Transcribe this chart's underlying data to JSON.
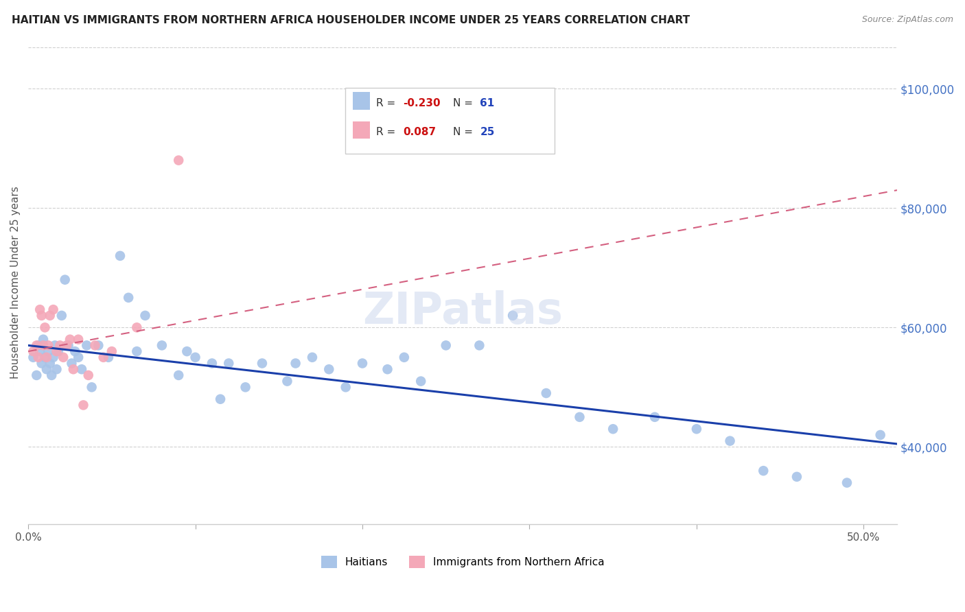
{
  "title": "HAITIAN VS IMMIGRANTS FROM NORTHERN AFRICA HOUSEHOLDER INCOME UNDER 25 YEARS CORRELATION CHART",
  "source": "Source: ZipAtlas.com",
  "ylabel": "Householder Income Under 25 years",
  "xlim": [
    0.0,
    0.52
  ],
  "ylim": [
    27000,
    108000
  ],
  "ytick_positions": [
    40000,
    60000,
    80000,
    100000
  ],
  "ytick_labels": [
    "$40,000",
    "$60,000",
    "$80,000",
    "$100,000"
  ],
  "blue_R": -0.23,
  "blue_N": 61,
  "pink_R": 0.087,
  "pink_N": 25,
  "blue_label": "Haitians",
  "pink_label": "Immigrants from Northern Africa",
  "blue_color": "#a8c4e8",
  "pink_color": "#f4a8b8",
  "blue_line_color": "#1a3faa",
  "pink_line_color": "#d46080",
  "watermark": "ZIPatlas",
  "blue_line_x0": 0.0,
  "blue_line_x1": 0.52,
  "blue_line_y0": 57000,
  "blue_line_y1": 40500,
  "pink_line_x0": 0.0,
  "pink_line_x1": 0.52,
  "pink_line_y0": 56000,
  "pink_line_y1": 83000,
  "blue_x": [
    0.003,
    0.005,
    0.006,
    0.007,
    0.008,
    0.009,
    0.01,
    0.011,
    0.012,
    0.013,
    0.014,
    0.015,
    0.016,
    0.017,
    0.018,
    0.02,
    0.022,
    0.024,
    0.026,
    0.028,
    0.03,
    0.032,
    0.035,
    0.038,
    0.042,
    0.048,
    0.055,
    0.06,
    0.065,
    0.07,
    0.08,
    0.09,
    0.095,
    0.1,
    0.11,
    0.115,
    0.12,
    0.13,
    0.14,
    0.155,
    0.16,
    0.17,
    0.18,
    0.19,
    0.2,
    0.215,
    0.225,
    0.235,
    0.25,
    0.27,
    0.29,
    0.31,
    0.33,
    0.35,
    0.375,
    0.4,
    0.42,
    0.44,
    0.46,
    0.49,
    0.51
  ],
  "blue_y": [
    55000,
    52000,
    57000,
    56000,
    54000,
    58000,
    55000,
    53000,
    56000,
    54000,
    52000,
    55000,
    57000,
    53000,
    56000,
    62000,
    68000,
    57000,
    54000,
    56000,
    55000,
    53000,
    57000,
    50000,
    57000,
    55000,
    72000,
    65000,
    56000,
    62000,
    57000,
    52000,
    56000,
    55000,
    54000,
    48000,
    54000,
    50000,
    54000,
    51000,
    54000,
    55000,
    53000,
    50000,
    54000,
    53000,
    55000,
    51000,
    57000,
    57000,
    62000,
    49000,
    45000,
    43000,
    45000,
    43000,
    41000,
    36000,
    35000,
    34000,
    42000
  ],
  "pink_x": [
    0.003,
    0.005,
    0.006,
    0.007,
    0.008,
    0.009,
    0.01,
    0.011,
    0.012,
    0.013,
    0.015,
    0.017,
    0.019,
    0.021,
    0.023,
    0.025,
    0.027,
    0.03,
    0.033,
    0.036,
    0.04,
    0.045,
    0.05,
    0.065,
    0.09
  ],
  "pink_y": [
    56000,
    57000,
    55000,
    63000,
    62000,
    57000,
    60000,
    55000,
    57000,
    62000,
    63000,
    56000,
    57000,
    55000,
    57000,
    58000,
    53000,
    58000,
    47000,
    52000,
    57000,
    55000,
    56000,
    60000,
    88000
  ]
}
